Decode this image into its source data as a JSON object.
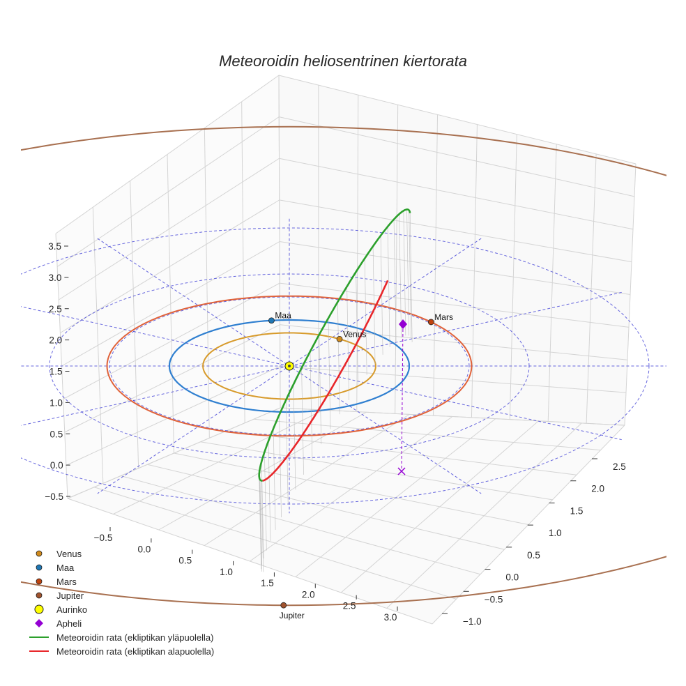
{
  "chart_data": {
    "type": "line",
    "projection": "3d",
    "title": "Meteoroidin heliosentrinen kiertorata",
    "x_axis_ticks": [
      "−0.5",
      "0.0",
      "0.5",
      "1.0",
      "1.5",
      "2.0",
      "2.5",
      "3.0"
    ],
    "y_axis_ticks": [
      "−1.0",
      "−0.5",
      "0.0",
      "0.5",
      "1.0",
      "1.5",
      "2.0",
      "2.5"
    ],
    "z_axis_ticks": [
      "−0.5",
      "0.0",
      "0.5",
      "1.0",
      "1.5",
      "2.0",
      "2.5",
      "3.0",
      "3.5"
    ],
    "xlim": [
      -0.8,
      3.3
    ],
    "ylim": [
      -1.2,
      2.8
    ],
    "zlim": [
      -0.7,
      3.7
    ],
    "planets": [
      {
        "name": "Venus",
        "label": "Venus",
        "orbit_radius_au": 0.72,
        "color": "#d08a1c",
        "orbit_color": "#d79a2a"
      },
      {
        "name": "Maa",
        "label": "Maa",
        "orbit_radius_au": 1.0,
        "color": "#1f77b4",
        "orbit_color": "#2f7fd0"
      },
      {
        "name": "Mars",
        "label": "Mars",
        "orbit_radius_au": 1.52,
        "color": "#c0430f",
        "orbit_color": "#e0623a"
      },
      {
        "name": "Jupiter",
        "label": "Jupiter",
        "orbit_radius_au": 5.2,
        "color": "#a0522d",
        "orbit_color": "#a87050"
      }
    ],
    "sun": {
      "name": "Aurinko",
      "color": "#ffff00"
    },
    "aphelion": {
      "name": "Apheli",
      "color": "#9400d3"
    },
    "series": [
      {
        "name": "Meteoroidin rata (ekliptikan yläpuolella)",
        "color": "#2ca02c"
      },
      {
        "name": "Meteoroidin rata (ekliptikan alapuolella)",
        "color": "#e8262a"
      }
    ],
    "legend": {
      "position": "lower-left",
      "entries": [
        "Venus",
        "Maa",
        "Mars",
        "Jupiter",
        "Aurinko",
        "Apheli",
        "Meteoroidin rata (ekliptikan yläpuolella)",
        "Meteoroidin rata (ekliptikan alapuolella)"
      ]
    },
    "grid": true
  }
}
